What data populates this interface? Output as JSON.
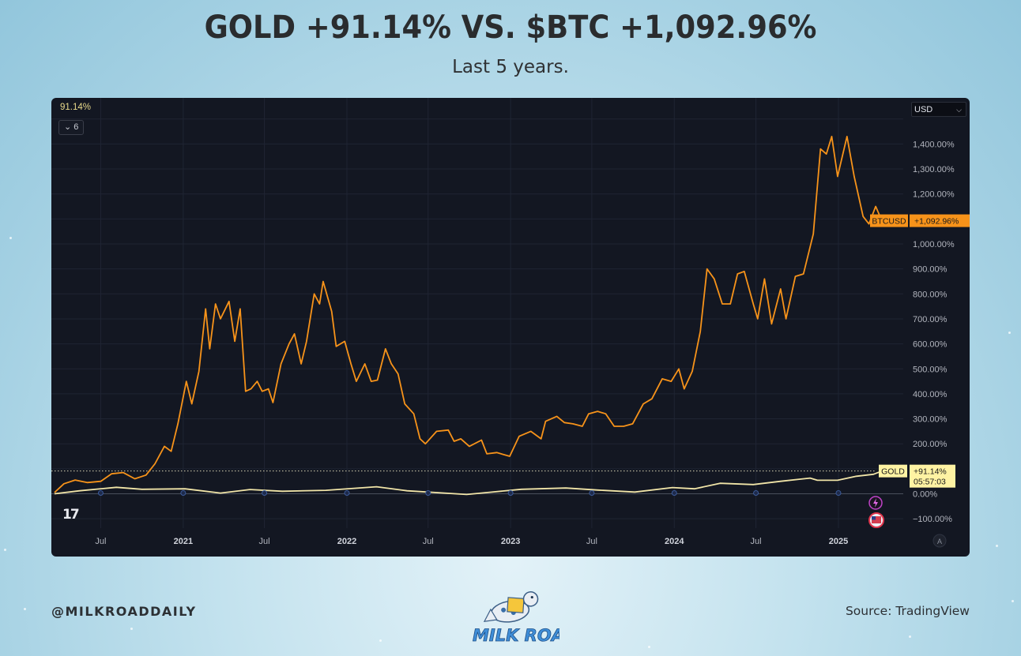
{
  "header": {
    "title": "GOLD +91.14% VS. $BTC +1,092.96%",
    "subtitle": "Last 5 years."
  },
  "chart_panel": {
    "top_left_value": "91.14%",
    "collapse_button_icon": "chevron-down-icon",
    "collapse_button_label": "6",
    "currency_select": "USD",
    "logo_mark": "17",
    "auto_scale_button": "A",
    "background": "#131722",
    "event_icons": [
      "lightning-icon",
      "us-flag-icon"
    ]
  },
  "chart_data": {
    "type": "line",
    "title": "",
    "xlabel": "",
    "ylabel": "",
    "ylim": [
      -150,
      1500
    ],
    "x_range": [
      "2020-03-20",
      "2025-04-10"
    ],
    "x_tick_labels": [
      {
        "label": "Jul",
        "date": "2020-07-01",
        "bold": false
      },
      {
        "label": "2021",
        "date": "2021-01-01",
        "bold": true
      },
      {
        "label": "Jul",
        "date": "2021-07-01",
        "bold": false
      },
      {
        "label": "2022",
        "date": "2022-01-01",
        "bold": true
      },
      {
        "label": "Jul",
        "date": "2022-07-01",
        "bold": false
      },
      {
        "label": "2023",
        "date": "2023-01-01",
        "bold": true
      },
      {
        "label": "Jul",
        "date": "2023-07-01",
        "bold": false
      },
      {
        "label": "2024",
        "date": "2024-01-01",
        "bold": true
      },
      {
        "label": "Jul",
        "date": "2024-07-01",
        "bold": false
      },
      {
        "label": "2025",
        "date": "2025-01-01",
        "bold": true
      }
    ],
    "y_ticks": [
      {
        "value": 1400,
        "label": "1,400.00%"
      },
      {
        "value": 1300,
        "label": "1,300.00%"
      },
      {
        "value": 1200,
        "label": "1,200.00%"
      },
      {
        "value": 1000,
        "label": "1,000.00%"
      },
      {
        "value": 900,
        "label": "900.00%"
      },
      {
        "value": 800,
        "label": "800.00%"
      },
      {
        "value": 700,
        "label": "700.00%"
      },
      {
        "value": 600,
        "label": "600.00%"
      },
      {
        "value": 500,
        "label": "500.00%"
      },
      {
        "value": 400,
        "label": "400.00%"
      },
      {
        "value": 300,
        "label": "300.00%"
      },
      {
        "value": 200,
        "label": "200.00%"
      },
      {
        "value": 0,
        "label": "0.00%"
      },
      {
        "value": -100,
        "label": "−100.00%"
      }
    ],
    "grid": true,
    "series": [
      {
        "name": "BTCUSD",
        "color": "#f7931a",
        "last_label": "+1,092.96%",
        "last_value": 1092.96,
        "points": [
          [
            "2020-03-20",
            5
          ],
          [
            "2020-04-10",
            40
          ],
          [
            "2020-05-05",
            55
          ],
          [
            "2020-06-01",
            45
          ],
          [
            "2020-07-01",
            50
          ],
          [
            "2020-07-25",
            80
          ],
          [
            "2020-08-20",
            85
          ],
          [
            "2020-09-15",
            60
          ],
          [
            "2020-10-10",
            75
          ],
          [
            "2020-10-30",
            120
          ],
          [
            "2020-11-20",
            190
          ],
          [
            "2020-12-05",
            170
          ],
          [
            "2020-12-20",
            280
          ],
          [
            "2021-01-08",
            450
          ],
          [
            "2021-01-20",
            360
          ],
          [
            "2021-02-05",
            490
          ],
          [
            "2021-02-20",
            740
          ],
          [
            "2021-03-01",
            580
          ],
          [
            "2021-03-14",
            760
          ],
          [
            "2021-03-25",
            700
          ],
          [
            "2021-04-13",
            770
          ],
          [
            "2021-04-26",
            610
          ],
          [
            "2021-05-08",
            740
          ],
          [
            "2021-05-20",
            410
          ],
          [
            "2021-06-01",
            420
          ],
          [
            "2021-06-15",
            450
          ],
          [
            "2021-06-26",
            410
          ],
          [
            "2021-07-10",
            420
          ],
          [
            "2021-07-20",
            365
          ],
          [
            "2021-08-07",
            520
          ],
          [
            "2021-08-25",
            600
          ],
          [
            "2021-09-06",
            640
          ],
          [
            "2021-09-21",
            520
          ],
          [
            "2021-10-03",
            610
          ],
          [
            "2021-10-20",
            800
          ],
          [
            "2021-11-01",
            760
          ],
          [
            "2021-11-09",
            850
          ],
          [
            "2021-11-28",
            730
          ],
          [
            "2021-12-08",
            590
          ],
          [
            "2021-12-27",
            610
          ],
          [
            "2022-01-10",
            520
          ],
          [
            "2022-01-22",
            450
          ],
          [
            "2022-02-10",
            520
          ],
          [
            "2022-02-24",
            450
          ],
          [
            "2022-03-10",
            455
          ],
          [
            "2022-03-28",
            580
          ],
          [
            "2022-04-10",
            520
          ],
          [
            "2022-04-25",
            480
          ],
          [
            "2022-05-10",
            360
          ],
          [
            "2022-05-30",
            320
          ],
          [
            "2022-06-13",
            220
          ],
          [
            "2022-06-25",
            200
          ],
          [
            "2022-07-20",
            250
          ],
          [
            "2022-08-15",
            255
          ],
          [
            "2022-08-28",
            210
          ],
          [
            "2022-09-12",
            220
          ],
          [
            "2022-10-01",
            190
          ],
          [
            "2022-10-28",
            215
          ],
          [
            "2022-11-09",
            160
          ],
          [
            "2022-12-01",
            165
          ],
          [
            "2022-12-30",
            150
          ],
          [
            "2023-01-20",
            230
          ],
          [
            "2023-02-15",
            250
          ],
          [
            "2023-03-10",
            220
          ],
          [
            "2023-03-20",
            290
          ],
          [
            "2023-04-14",
            310
          ],
          [
            "2023-05-01",
            285
          ],
          [
            "2023-05-20",
            280
          ],
          [
            "2023-06-10",
            270
          ],
          [
            "2023-06-24",
            320
          ],
          [
            "2023-07-14",
            330
          ],
          [
            "2023-08-01",
            320
          ],
          [
            "2023-08-20",
            270
          ],
          [
            "2023-09-10",
            270
          ],
          [
            "2023-09-30",
            280
          ],
          [
            "2023-10-24",
            360
          ],
          [
            "2023-11-12",
            380
          ],
          [
            "2023-12-05",
            460
          ],
          [
            "2023-12-25",
            450
          ],
          [
            "2024-01-11",
            500
          ],
          [
            "2024-01-23",
            420
          ],
          [
            "2024-02-10",
            490
          ],
          [
            "2024-02-28",
            650
          ],
          [
            "2024-03-14",
            900
          ],
          [
            "2024-03-30",
            860
          ],
          [
            "2024-04-17",
            760
          ],
          [
            "2024-05-05",
            760
          ],
          [
            "2024-05-21",
            880
          ],
          [
            "2024-06-05",
            890
          ],
          [
            "2024-06-25",
            760
          ],
          [
            "2024-07-05",
            700
          ],
          [
            "2024-07-20",
            860
          ],
          [
            "2024-08-05",
            680
          ],
          [
            "2024-08-25",
            820
          ],
          [
            "2024-09-06",
            700
          ],
          [
            "2024-09-27",
            870
          ],
          [
            "2024-10-15",
            880
          ],
          [
            "2024-11-06",
            1040
          ],
          [
            "2024-11-22",
            1380
          ],
          [
            "2024-12-05",
            1360
          ],
          [
            "2024-12-17",
            1430
          ],
          [
            "2024-12-30",
            1270
          ],
          [
            "2025-01-20",
            1430
          ],
          [
            "2025-02-05",
            1270
          ],
          [
            "2025-02-25",
            1110
          ],
          [
            "2025-03-10",
            1080
          ],
          [
            "2025-03-25",
            1150
          ],
          [
            "2025-04-08",
            1092.96
          ]
        ]
      },
      {
        "name": "GOLD",
        "color": "#f1e5a8",
        "last_label": "+91.14%",
        "countdown": "05:57:03",
        "last_value": 91.14,
        "points": [
          [
            "2020-03-20",
            0
          ],
          [
            "2020-05-15",
            12
          ],
          [
            "2020-08-05",
            26
          ],
          [
            "2020-10-01",
            18
          ],
          [
            "2021-01-05",
            20
          ],
          [
            "2021-03-25",
            3
          ],
          [
            "2021-05-30",
            17
          ],
          [
            "2021-08-10",
            10
          ],
          [
            "2021-11-15",
            14
          ],
          [
            "2022-03-08",
            28
          ],
          [
            "2022-05-15",
            12
          ],
          [
            "2022-09-25",
            -3
          ],
          [
            "2022-11-15",
            6
          ],
          [
            "2023-01-25",
            18
          ],
          [
            "2023-05-04",
            23
          ],
          [
            "2023-07-15",
            15
          ],
          [
            "2023-10-05",
            7
          ],
          [
            "2023-12-28",
            25
          ],
          [
            "2024-02-15",
            20
          ],
          [
            "2024-04-12",
            42
          ],
          [
            "2024-06-25",
            37
          ],
          [
            "2024-08-25",
            50
          ],
          [
            "2024-10-30",
            63
          ],
          [
            "2024-11-15",
            54
          ],
          [
            "2024-12-30",
            54
          ],
          [
            "2025-02-10",
            70
          ],
          [
            "2025-03-20",
            78
          ],
          [
            "2025-04-08",
            91.14
          ]
        ]
      }
    ],
    "reference_line": {
      "value": 91.14,
      "style": "dotted"
    },
    "markers_on_zero": [
      "2020-07-01",
      "2021-01-01",
      "2021-07-01",
      "2022-01-01",
      "2022-07-01",
      "2023-01-01",
      "2023-07-01",
      "2024-01-01",
      "2024-07-01",
      "2025-01-01"
    ]
  },
  "footer": {
    "handle": "@MILKROADDAILY",
    "source": "Source: TradingView",
    "logo_text": "MILK ROAD"
  },
  "colors": {
    "btc": "#f7931a",
    "gold": "#f1e5a8",
    "gold_label_bg": "#fff3a3",
    "axis_text": "#b2b5be",
    "grid": "#1f2433"
  }
}
